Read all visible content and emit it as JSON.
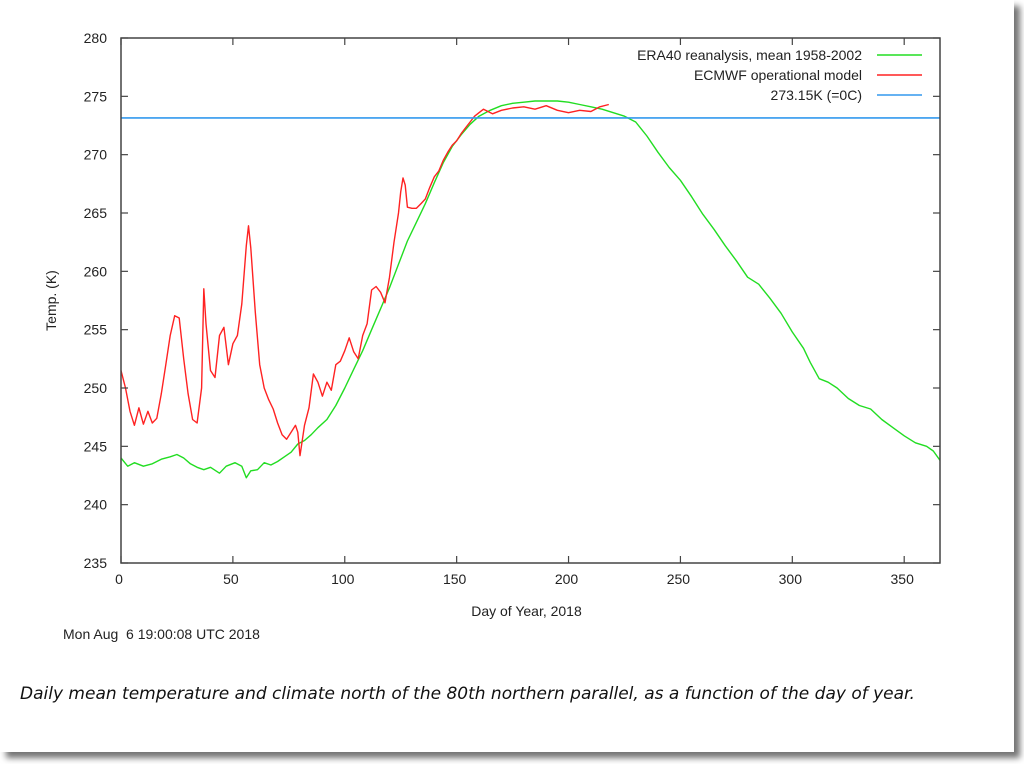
{
  "chart_data": {
    "type": "line",
    "title": "",
    "xlabel": "Day of Year, 2018",
    "ylabel": "Temp. (K)",
    "xlim": [
      0,
      366
    ],
    "ylim": [
      235,
      280
    ],
    "xticks": [
      0,
      50,
      100,
      150,
      200,
      250,
      300,
      350
    ],
    "yticks": [
      235,
      240,
      245,
      250,
      255,
      260,
      265,
      270,
      275,
      280
    ],
    "grid": false,
    "legend_position": "top-right",
    "series": [
      {
        "name": "ERA40 reanalysis, mean 1958-2002",
        "color": "#22dd22",
        "x": [
          0,
          3,
          6,
          10,
          14,
          18,
          22,
          25,
          28,
          31,
          34,
          37,
          40,
          44,
          47,
          51,
          54,
          56,
          58,
          61,
          64,
          67,
          70,
          73,
          76,
          79,
          82,
          85,
          88,
          92,
          96,
          100,
          104,
          108,
          112,
          116,
          120,
          124,
          128,
          132,
          136,
          140,
          144,
          148,
          152,
          156,
          160,
          165,
          170,
          175,
          180,
          185,
          190,
          195,
          200,
          205,
          210,
          215,
          220,
          225,
          230,
          235,
          240,
          245,
          250,
          255,
          260,
          265,
          270,
          275,
          280,
          285,
          290,
          295,
          300,
          305,
          308,
          312,
          316,
          320,
          325,
          330,
          335,
          340,
          345,
          350,
          355,
          360,
          363,
          366
        ],
        "y": [
          244.0,
          243.3,
          243.6,
          243.3,
          243.5,
          243.9,
          244.1,
          244.3,
          244.0,
          243.5,
          243.2,
          243.0,
          243.2,
          242.7,
          243.3,
          243.6,
          243.3,
          242.3,
          242.9,
          243.0,
          243.6,
          243.4,
          243.7,
          244.1,
          244.5,
          245.2,
          245.5,
          246.0,
          246.6,
          247.3,
          248.5,
          250.0,
          251.6,
          253.2,
          255.0,
          256.8,
          258.6,
          260.6,
          262.6,
          264.2,
          265.8,
          267.6,
          269.3,
          270.7,
          271.7,
          272.6,
          273.3,
          273.8,
          274.2,
          274.4,
          274.5,
          274.6,
          274.6,
          274.6,
          274.5,
          274.3,
          274.1,
          273.9,
          273.6,
          273.3,
          272.8,
          271.6,
          270.2,
          268.9,
          267.8,
          266.4,
          264.9,
          263.6,
          262.2,
          260.9,
          259.5,
          258.9,
          257.7,
          256.4,
          254.8,
          253.4,
          252.2,
          250.8,
          250.5,
          250.0,
          249.1,
          248.5,
          248.2,
          247.3,
          246.6,
          245.9,
          245.3,
          245.0,
          244.6,
          243.8
        ]
      },
      {
        "name": "ECMWF operational model",
        "color": "#ff2222",
        "x": [
          0,
          2,
          4,
          6,
          8,
          10,
          12,
          14,
          16,
          18,
          20,
          22,
          24,
          26,
          28,
          30,
          32,
          34,
          36,
          37,
          38,
          40,
          42,
          44,
          46,
          48,
          50,
          52,
          54,
          56,
          57,
          58,
          60,
          62,
          64,
          66,
          68,
          70,
          72,
          74,
          76,
          78,
          79,
          80,
          82,
          84,
          86,
          88,
          90,
          92,
          94,
          96,
          98,
          100,
          102,
          104,
          106,
          108,
          110,
          112,
          114,
          116,
          118,
          120,
          122,
          124,
          125,
          126,
          127,
          128,
          130,
          132,
          134,
          136,
          138,
          140,
          142,
          144,
          146,
          148,
          150,
          152,
          154,
          156,
          158,
          160,
          162,
          164,
          166,
          170,
          175,
          180,
          185,
          190,
          195,
          200,
          205,
          210,
          214,
          218
        ],
        "y": [
          251.5,
          250.0,
          248.0,
          246.8,
          248.3,
          246.9,
          248.0,
          247.0,
          247.4,
          249.5,
          252.0,
          254.5,
          256.2,
          256.0,
          252.5,
          249.5,
          247.3,
          247.0,
          250.0,
          258.5,
          255.5,
          251.5,
          250.9,
          254.5,
          255.2,
          252.0,
          253.8,
          254.5,
          257.2,
          262.2,
          263.9,
          262.0,
          256.5,
          252.0,
          250.0,
          249.0,
          248.2,
          247.0,
          246.0,
          245.6,
          246.2,
          246.8,
          246.2,
          244.2,
          246.8,
          248.3,
          251.2,
          250.5,
          249.3,
          250.5,
          249.8,
          252.0,
          252.3,
          253.2,
          254.3,
          253.1,
          252.5,
          254.5,
          255.5,
          258.4,
          258.7,
          258.2,
          257.3,
          259.5,
          262.5,
          265.0,
          266.8,
          268.0,
          267.4,
          265.5,
          265.4,
          265.4,
          265.8,
          266.2,
          267.2,
          268.1,
          268.6,
          269.5,
          270.2,
          270.8,
          271.2,
          271.8,
          272.3,
          272.8,
          273.3,
          273.6,
          273.9,
          273.7,
          273.5,
          273.8,
          274.0,
          274.1,
          273.9,
          274.2,
          273.8,
          273.6,
          273.8,
          273.7,
          274.1,
          274.3
        ]
      },
      {
        "name": "273.15K (=0C)",
        "color": "#3399ee",
        "x": [
          0,
          366
        ],
        "y": [
          273.15,
          273.15
        ]
      }
    ]
  },
  "footer": {
    "timestamp": "Mon Aug  6 19:00:08 UTC 2018",
    "caption": "Daily mean temperature and climate north of the 80th northern parallel, as a function of the day of year."
  }
}
